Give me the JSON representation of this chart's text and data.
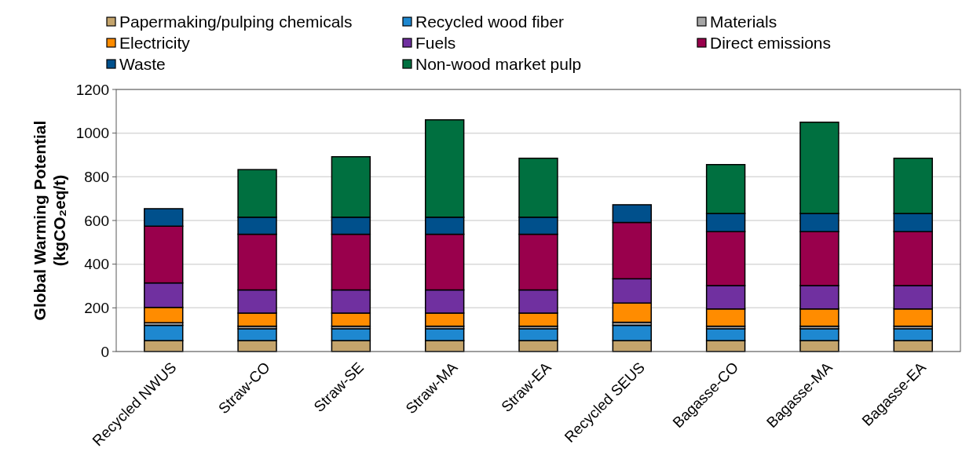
{
  "chart_data": {
    "type": "bar",
    "stacked": true,
    "ylabel": "Global Warming Potential\n(kgCO₂eq/t)",
    "categories": [
      "Recycled NWUS",
      "Straw-CO",
      "Straw-SE",
      "Straw-MA",
      "Straw-EA",
      "Recycled SEUS",
      "Bagasse-CO",
      "Bagasse-MA",
      "Bagasse-EA"
    ],
    "series": [
      {
        "name": "Papermaking/pulping chemicals",
        "color": "#c4a46c",
        "values": [
          50,
          50,
          50,
          50,
          50,
          50,
          50,
          50,
          50
        ]
      },
      {
        "name": "Recycled wood fiber",
        "color": "#1e88d0",
        "values": [
          70,
          54,
          54,
          54,
          54,
          70,
          54,
          54,
          54
        ]
      },
      {
        "name": "Materials",
        "color": "#a6a6a6",
        "values": [
          12,
          12,
          12,
          12,
          12,
          14,
          12,
          12,
          12
        ]
      },
      {
        "name": "Electricity",
        "color": "#ff8c00",
        "values": [
          70,
          60,
          60,
          60,
          60,
          88,
          79,
          79,
          79
        ]
      },
      {
        "name": "Fuels",
        "color": "#7030a0",
        "values": [
          112,
          106,
          106,
          106,
          106,
          111,
          107,
          107,
          107
        ]
      },
      {
        "name": "Direct emissions",
        "color": "#99004c",
        "values": [
          260,
          255,
          255,
          255,
          255,
          258,
          247,
          247,
          247
        ]
      },
      {
        "name": "Waste",
        "color": "#00508c",
        "values": [
          80,
          78,
          78,
          78,
          78,
          81,
          83,
          83,
          83
        ]
      },
      {
        "name": "Non-wood market pulp",
        "color": "#007040",
        "values": [
          0,
          218,
          277,
          446,
          270,
          0,
          224,
          418,
          253
        ]
      }
    ],
    "ylim": [
      0,
      1200
    ],
    "yticks": [
      0,
      200,
      400,
      600,
      800,
      1000,
      1200
    ],
    "grid": "y",
    "legend": "top"
  }
}
